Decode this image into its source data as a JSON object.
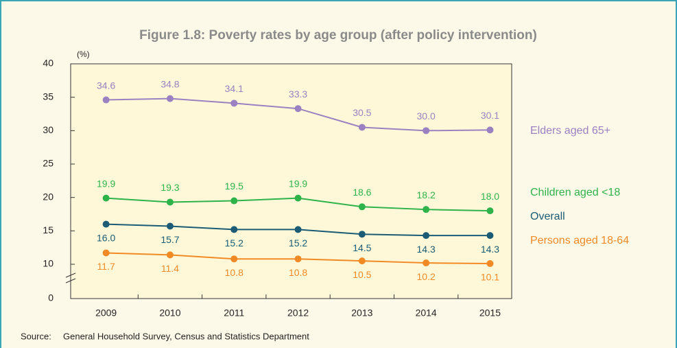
{
  "chart_data": {
    "type": "line",
    "title": "Figure 1.8: Poverty rates by age group (after policy intervention)",
    "y_unit": "(%)",
    "source_label": "Source:",
    "source": "General Household Survey, Census and Statistics Department",
    "categories": [
      "2009",
      "2010",
      "2011",
      "2012",
      "2013",
      "2014",
      "2015"
    ],
    "series": [
      {
        "name": "Elders aged 65+",
        "color": "#9b80c2",
        "values": [
          34.6,
          34.8,
          34.1,
          33.3,
          30.5,
          30.0,
          30.1
        ],
        "value_labels": [
          "34.6",
          "34.8",
          "34.1",
          "33.3",
          "30.5",
          "30.0",
          "30.1"
        ]
      },
      {
        "name": "Children aged <18",
        "color": "#2eb34b",
        "values": [
          19.9,
          19.3,
          19.5,
          19.9,
          18.6,
          18.2,
          18.0
        ],
        "value_labels": [
          "19.9",
          "19.3",
          "19.5",
          "19.9",
          "18.6",
          "18.2",
          "18.0"
        ]
      },
      {
        "name": "Overall",
        "color": "#1b5b75",
        "values": [
          16.0,
          15.7,
          15.2,
          15.2,
          14.5,
          14.3,
          14.3
        ],
        "value_labels": [
          "16.0",
          "15.7",
          "15.2",
          "15.2",
          "14.5",
          "14.3",
          "14.3"
        ]
      },
      {
        "name": "Persons aged 18-64",
        "color": "#f18a25",
        "values": [
          11.7,
          11.4,
          10.8,
          10.8,
          10.5,
          10.2,
          10.1
        ],
        "value_labels": [
          "11.7",
          "11.4",
          "10.8",
          "10.8",
          "10.5",
          "10.2",
          "10.1"
        ]
      }
    ],
    "ylim": [
      0,
      40
    ],
    "yticks": [
      0,
      10,
      15,
      20,
      25,
      30,
      35,
      40
    ],
    "axis_break": true
  }
}
